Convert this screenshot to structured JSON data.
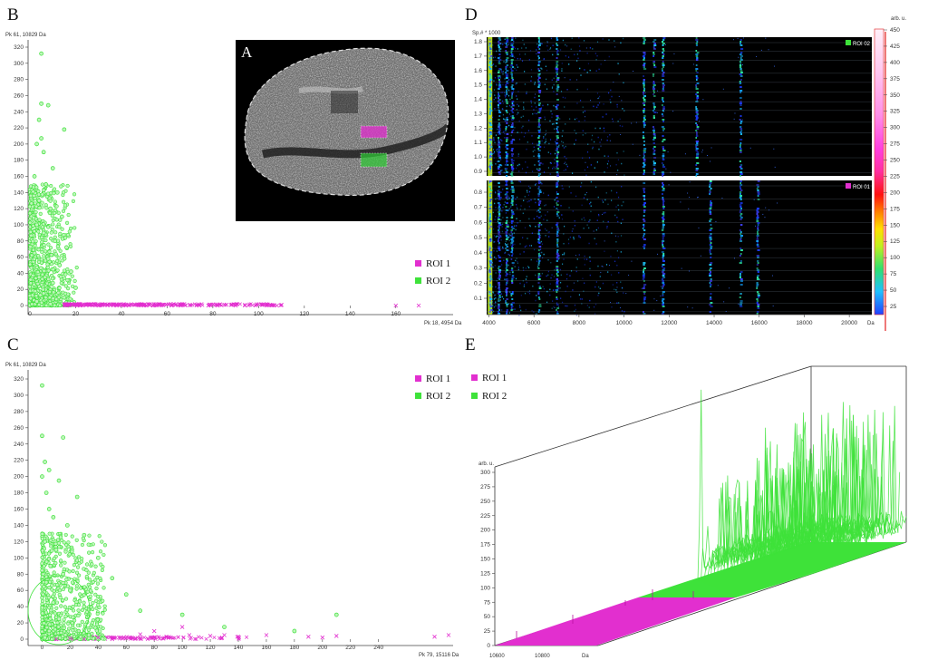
{
  "colors": {
    "roi1": "#e22fcf",
    "roi2": "#3ee23a",
    "roi2_fill": "#bff5bb"
  },
  "panels": {
    "A": {
      "letter": "A"
    },
    "B": {
      "letter": "B",
      "ylabel": "Pk 61, 10829 Da",
      "xlabel": "Pk 18, 4954 Da",
      "xlim": [
        0,
        170
      ],
      "ylim": [
        0,
        320
      ],
      "xticks": [
        0,
        20,
        40,
        60,
        80,
        100,
        120,
        140,
        160
      ],
      "yticks": [
        0,
        20,
        40,
        60,
        80,
        100,
        120,
        140,
        160,
        180,
        200,
        220,
        240,
        260,
        280,
        300,
        320
      ]
    },
    "C": {
      "letter": "C",
      "ylabel": "Pk 61, 10829 Da",
      "xlabel": "Pk 79, 15116 Da",
      "xlim": [
        -10,
        290
      ],
      "ylim": [
        0,
        320
      ],
      "xticks": [
        0,
        20,
        40,
        60,
        80,
        100,
        120,
        140,
        160,
        180,
        200,
        220,
        240
      ],
      "yticks": [
        0,
        20,
        40,
        60,
        80,
        100,
        120,
        140,
        160,
        180,
        200,
        220,
        240,
        260,
        280,
        300,
        320
      ]
    },
    "D": {
      "letter": "D",
      "ylabel": "Sp.# * 1000",
      "xunit": "Da",
      "cbar_unit": "arb. u.",
      "xlim": [
        3900,
        21000
      ],
      "xticks": [
        4000,
        6000,
        8000,
        10000,
        12000,
        14000,
        16000,
        18000,
        20000
      ],
      "upper_yticks": [
        "0.9",
        "1.0",
        "1.1",
        "1.2",
        "1.3",
        "1.4",
        "1.5",
        "1.6",
        "1.7",
        "1.8"
      ],
      "lower_yticks": [
        "0.1",
        "0.2",
        "0.3",
        "0.4",
        "0.5",
        "0.6",
        "0.7",
        "0.8"
      ],
      "roi_top": "ROI 02",
      "roi_bottom": "ROI 01",
      "cbar_ticks": [
        25,
        50,
        75,
        100,
        125,
        150,
        175,
        200,
        225,
        250,
        275,
        300,
        325,
        350,
        375,
        400,
        425,
        450
      ]
    },
    "E": {
      "letter": "E",
      "ylabel": "arb. u.",
      "xunit": "Da",
      "xticks": [
        "10600",
        "10800"
      ],
      "yticks": [
        0,
        25,
        50,
        75,
        100,
        125,
        150,
        175,
        200,
        225,
        250,
        275,
        300
      ]
    }
  },
  "legend": {
    "roi1": "ROI 1",
    "roi2": "ROI 2"
  },
  "chart_data": [
    {
      "type": "scatter",
      "panel": "B",
      "xlabel": "Pk 18, 4954 Da",
      "ylabel": "Pk 61, 10829 Da",
      "xlim": [
        0,
        170
      ],
      "ylim": [
        0,
        320
      ],
      "series": [
        {
          "name": "ROI 1",
          "marker": "x",
          "points": [
            [
              22,
              0
            ],
            [
              26,
              1
            ],
            [
              30,
              0
            ],
            [
              34,
              1
            ],
            [
              38,
              0
            ],
            [
              42,
              0
            ],
            [
              46,
              1
            ],
            [
              50,
              0
            ],
            [
              54,
              0
            ],
            [
              58,
              1
            ],
            [
              62,
              0
            ],
            [
              66,
              0
            ],
            [
              70,
              1
            ],
            [
              74,
              0
            ],
            [
              78,
              0
            ],
            [
              82,
              0
            ],
            [
              86,
              1
            ],
            [
              90,
              0
            ],
            [
              94,
              0
            ],
            [
              105,
              1
            ],
            [
              108,
              0
            ],
            [
              110,
              1
            ],
            [
              160,
              0
            ],
            [
              170,
              0
            ]
          ]
        },
        {
          "name": "ROI 2",
          "marker": "o",
          "points": [
            [
              5,
              312
            ],
            [
              5,
              250
            ],
            [
              8,
              248
            ],
            [
              4,
              230
            ],
            [
              15,
              218
            ],
            [
              5,
              207
            ],
            [
              3,
              200
            ],
            [
              6,
              190
            ],
            [
              10,
              170
            ],
            [
              2,
              160
            ],
            [
              7,
              150
            ],
            [
              12,
              140
            ],
            [
              4,
              130
            ],
            [
              9,
              120
            ],
            [
              14,
              110
            ],
            [
              3,
              100
            ],
            [
              6,
              90
            ],
            [
              11,
              80
            ],
            [
              16,
              72
            ],
            [
              2,
              65
            ],
            [
              8,
              58
            ],
            [
              13,
              50
            ],
            [
              18,
              42
            ],
            [
              4,
              35
            ],
            [
              10,
              28
            ],
            [
              20,
              22
            ],
            [
              6,
              15
            ],
            [
              15,
              10
            ],
            [
              3,
              5
            ],
            [
              9,
              2
            ]
          ]
        }
      ]
    },
    {
      "type": "scatter",
      "panel": "C",
      "xlabel": "Pk 79, 15116 Da",
      "ylabel": "Pk 61, 10829 Da",
      "xlim": [
        -10,
        290
      ],
      "ylim": [
        0,
        320
      ],
      "series": [
        {
          "name": "ROI 1",
          "marker": "x",
          "points": [
            [
              10,
              0
            ],
            [
              20,
              1
            ],
            [
              30,
              0
            ],
            [
              40,
              2
            ],
            [
              50,
              0
            ],
            [
              60,
              1
            ],
            [
              70,
              6
            ],
            [
              80,
              10
            ],
            [
              90,
              2
            ],
            [
              100,
              15
            ],
            [
              105,
              5
            ],
            [
              120,
              4
            ],
            [
              130,
              5
            ],
            [
              140,
              3
            ],
            [
              160,
              5
            ],
            [
              190,
              3
            ],
            [
              200,
              2
            ],
            [
              210,
              4
            ],
            [
              280,
              3
            ],
            [
              290,
              5
            ]
          ]
        },
        {
          "name": "ROI 2",
          "marker": "o",
          "points": [
            [
              0,
              312
            ],
            [
              0,
              250
            ],
            [
              15,
              248
            ],
            [
              2,
              218
            ],
            [
              5,
              208
            ],
            [
              0,
              200
            ],
            [
              12,
              195
            ],
            [
              3,
              180
            ],
            [
              25,
              175
            ],
            [
              5,
              160
            ],
            [
              8,
              150
            ],
            [
              18,
              140
            ],
            [
              30,
              128
            ],
            [
              2,
              120
            ],
            [
              10,
              110
            ],
            [
              40,
              100
            ],
            [
              6,
              90
            ],
            [
              15,
              80
            ],
            [
              50,
              75
            ],
            [
              3,
              70
            ],
            [
              20,
              60
            ],
            [
              60,
              55
            ],
            [
              8,
              45
            ],
            [
              30,
              40
            ],
            [
              70,
              35
            ],
            [
              100,
              30
            ],
            [
              12,
              25
            ],
            [
              130,
              15
            ],
            [
              180,
              10
            ],
            [
              210,
              30
            ],
            [
              5,
              10
            ],
            [
              2,
              2
            ]
          ]
        }
      ]
    },
    {
      "type": "heatmap",
      "panel": "D",
      "x_unit": "Da",
      "y_label": "Sp.# * 1000",
      "xlim": [
        3900,
        21000
      ],
      "rows": [
        {
          "name": "ROI 02",
          "y_range": [
            0.9,
            1.85
          ],
          "peaks_da": [
            4030,
            4420,
            4750,
            5000,
            6200,
            7000,
            10850,
            11300,
            11700,
            13200,
            15150
          ]
        },
        {
          "name": "ROI 01",
          "y_range": [
            0.0,
            0.85
          ],
          "peaks_da": [
            4030,
            4420,
            4750,
            5000,
            6200,
            7000,
            10850,
            11700,
            13800,
            15150,
            15900
          ]
        }
      ],
      "colorbar": {
        "unit": "arb. u.",
        "min": 25,
        "max": 450
      }
    },
    {
      "type": "line",
      "panel": "E",
      "x_unit": "Da",
      "y_label": "arb. u.",
      "ylim": [
        0,
        300
      ],
      "series": [
        {
          "name": "ROI 1",
          "x": [
            10600,
            10800
          ],
          "max_intensity": 12
        },
        {
          "name": "ROI 2",
          "x": [
            10600,
            10800
          ],
          "max_intensity": 310
        }
      ]
    }
  ]
}
